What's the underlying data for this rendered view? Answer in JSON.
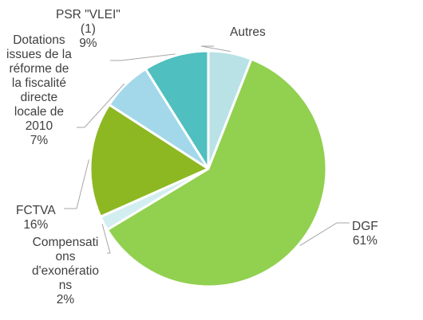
{
  "chart_data": {
    "type": "pie",
    "title": "",
    "start_slice": "Autres",
    "direction": "clockwise",
    "slices": [
      {
        "name": "Autres",
        "value": 6,
        "color": "#b9e2e6",
        "lines": [
          "Autres"
        ],
        "value_label": ""
      },
      {
        "name": "DGF",
        "value": 61,
        "color": "#92d050",
        "lines": [
          "DGF"
        ],
        "value_label": "61%"
      },
      {
        "name": "Compensations d'exonérations",
        "value": 2,
        "color": "#d3eef0",
        "lines": [
          "Compensati",
          "ons",
          "d'exonératio",
          "ns"
        ],
        "value_label": "2%"
      },
      {
        "name": "FCTVA",
        "value": 16,
        "color": "#8db822",
        "lines": [
          "FCTVA"
        ],
        "value_label": "16%"
      },
      {
        "name": "Dotations issues de la réforme de la fiscalité directe locale de 2010",
        "value": 7,
        "color": "#a2d8ea",
        "lines": [
          "Dotations",
          "issues de la",
          "réforme de",
          "la fiscalité",
          "directe",
          "locale de",
          "2010"
        ],
        "value_label": "7%"
      },
      {
        "name": "PSR \"VLEI\" (1)",
        "value": 9,
        "color": "#4fbfbf",
        "lines": [
          "PSR \"VLEI\"",
          "(1)"
        ],
        "value_label": "9%"
      }
    ]
  }
}
